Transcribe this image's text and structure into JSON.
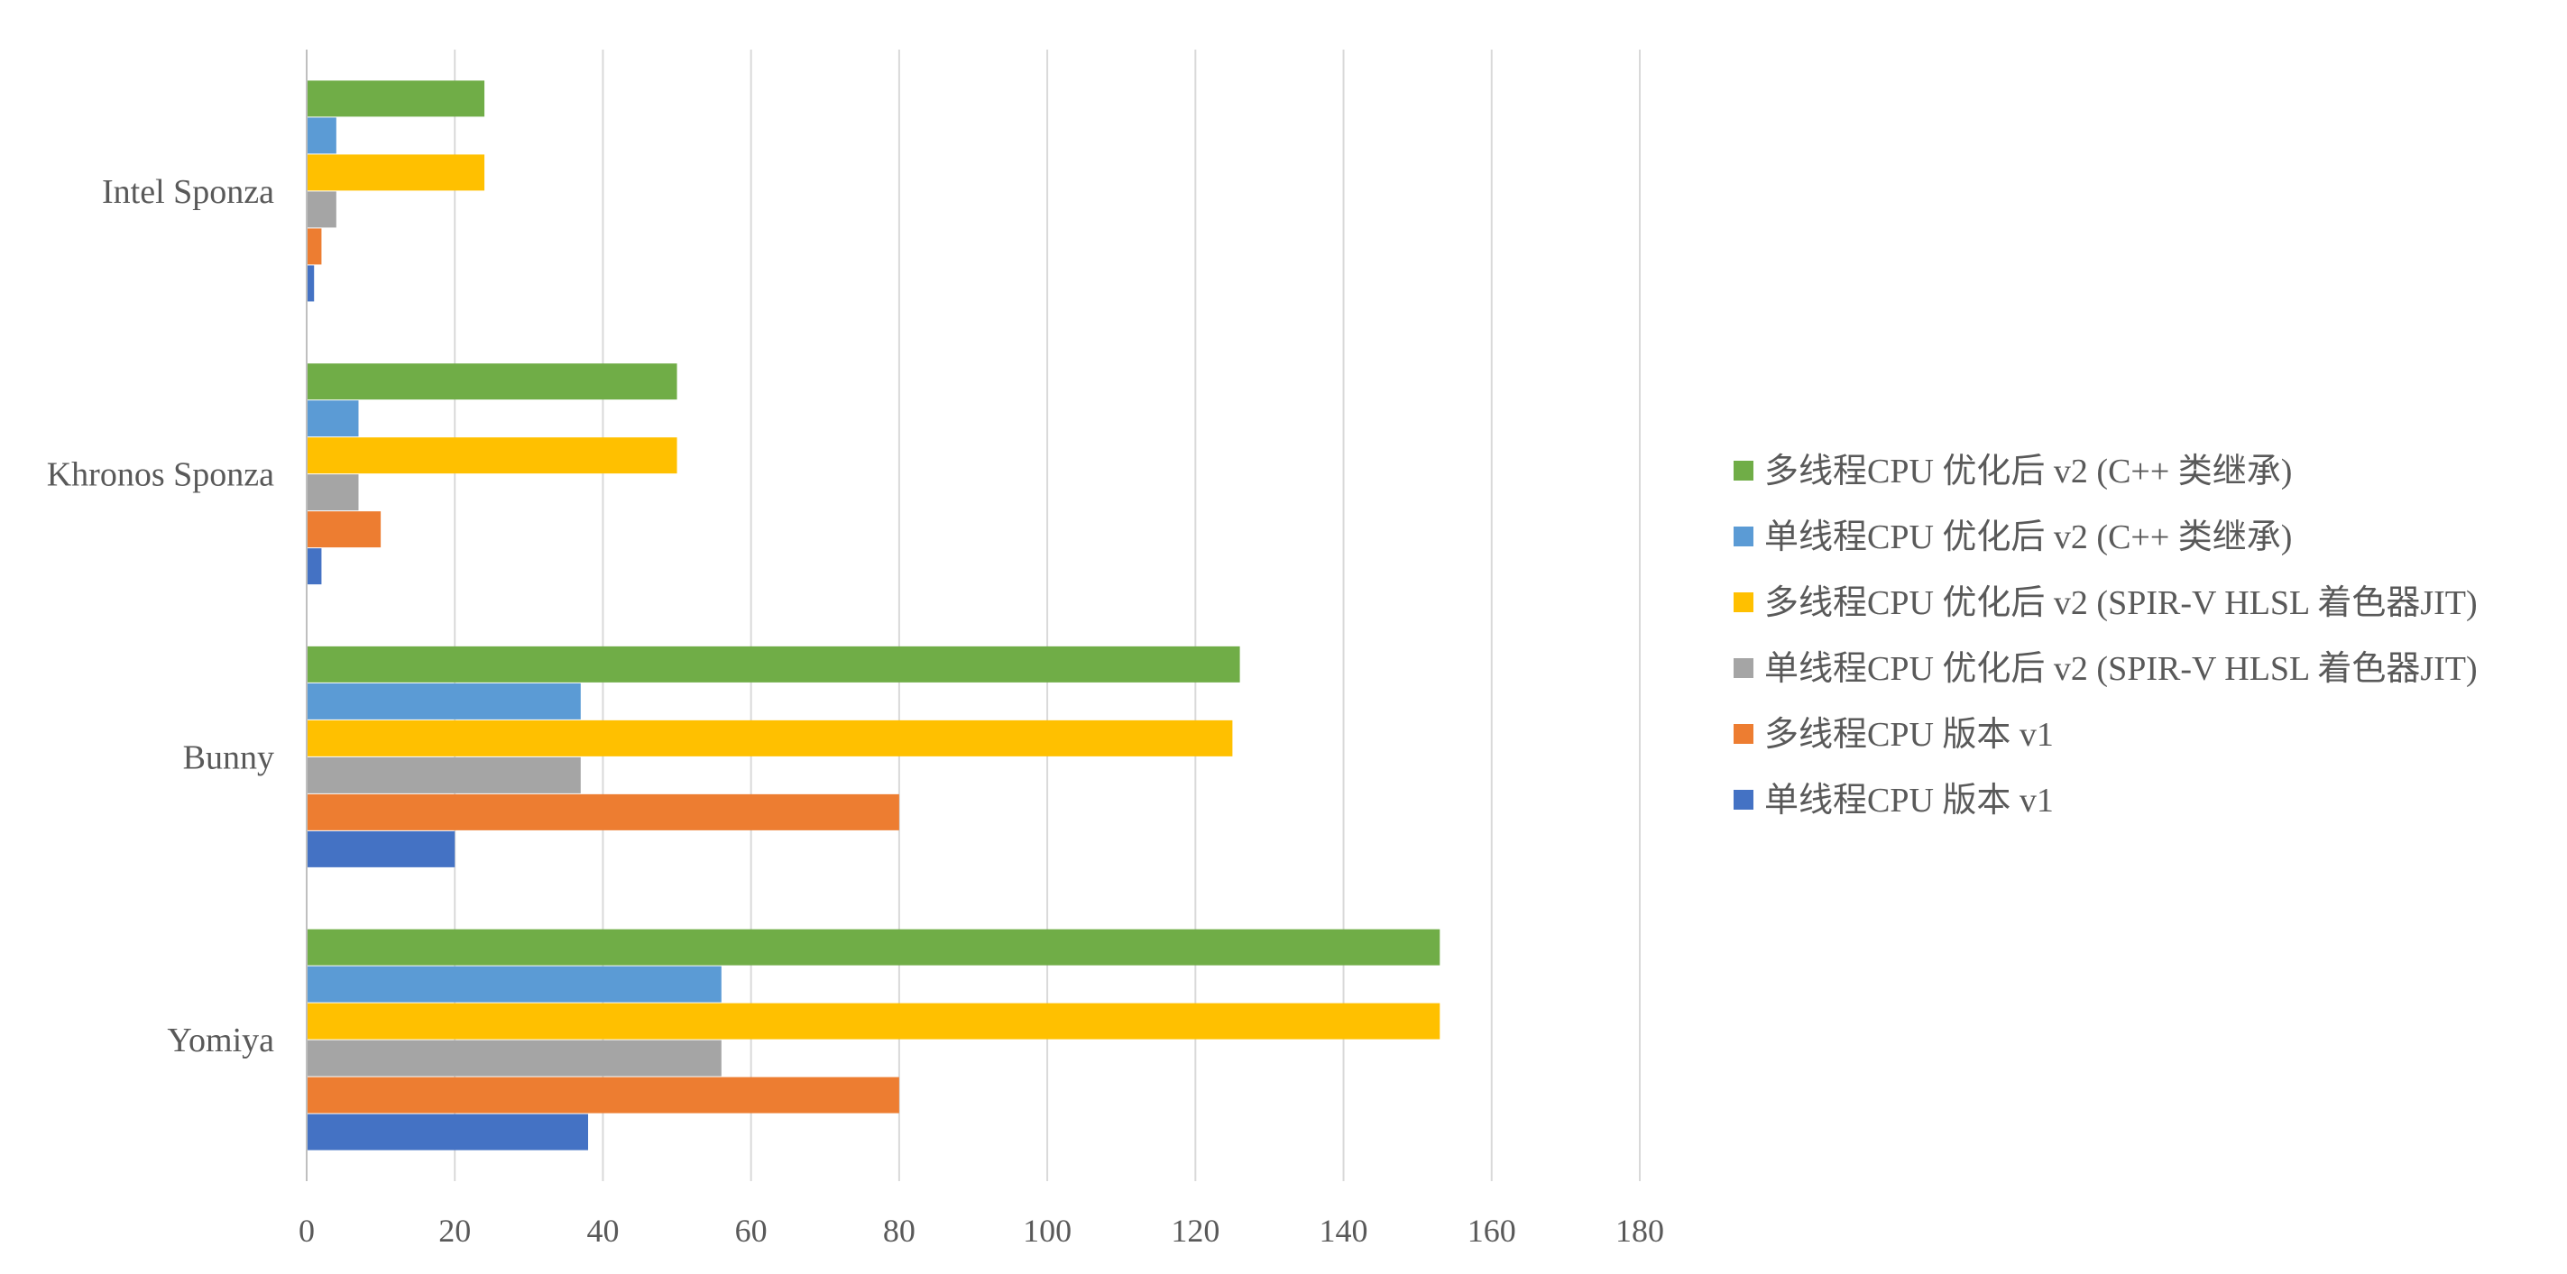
{
  "chart_data": {
    "type": "bar",
    "orientation": "horizontal",
    "categories": [
      "Intel Sponza",
      "Khronos Sponza",
      "Bunny",
      "Yomiya"
    ],
    "series": [
      {
        "name": "单线程CPU 版本 v1",
        "color": "#4472C4",
        "values": [
          1,
          2,
          20,
          38
        ]
      },
      {
        "name": "多线程CPU 版本 v1",
        "color": "#ED7D31",
        "values": [
          2,
          10,
          80,
          80
        ]
      },
      {
        "name": "单线程CPU 优化后 v2 (SPIR-V HLSL 着色器JIT)",
        "color": "#A5A5A5",
        "values": [
          4,
          7,
          37,
          56
        ]
      },
      {
        "name": "多线程CPU 优化后 v2 (SPIR-V HLSL 着色器JIT)",
        "color": "#FFC000",
        "values": [
          24,
          50,
          125,
          153
        ]
      },
      {
        "name": "单线程CPU 优化后 v2 (C++ 类继承)",
        "color": "#5B9BD5",
        "values": [
          4,
          7,
          37,
          56
        ]
      },
      {
        "name": "多线程CPU 优化后 v2 (C++ 类继承)",
        "color": "#70AD47",
        "values": [
          24,
          50,
          126,
          153
        ]
      }
    ],
    "xlim": [
      0,
      180
    ],
    "xticks": [
      0,
      20,
      40,
      60,
      80,
      100,
      120,
      140,
      160,
      180
    ],
    "title": "",
    "xlabel": "",
    "ylabel": "",
    "grid": "vertical",
    "legend_position": "right"
  }
}
